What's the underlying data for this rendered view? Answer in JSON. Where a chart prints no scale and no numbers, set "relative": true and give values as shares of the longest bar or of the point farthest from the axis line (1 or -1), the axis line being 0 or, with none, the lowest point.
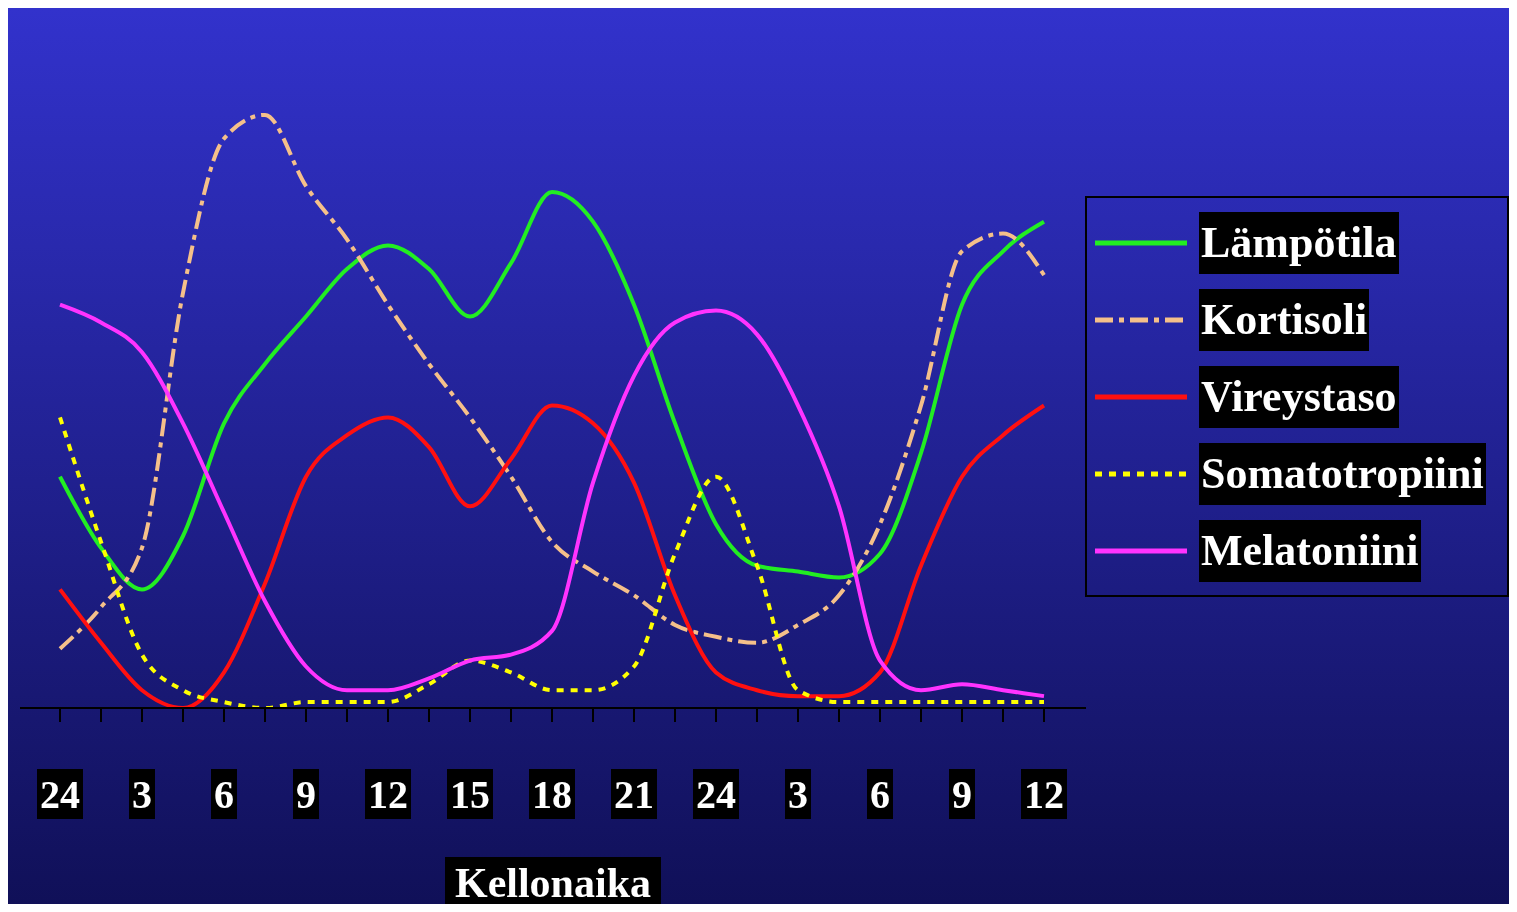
{
  "chart_data": {
    "type": "line",
    "relative": true,
    "xlabel": "Kellonaika",
    "categories": [
      "24",
      null,
      "3",
      null,
      "6",
      null,
      "9",
      null,
      "12",
      null,
      "15",
      null,
      "18",
      null,
      "21",
      null,
      "24",
      null,
      "3",
      null,
      "6",
      null,
      "9",
      null,
      "12"
    ],
    "legend": "right",
    "series": [
      {
        "name": "Lämpötila",
        "color": "#22ee22",
        "line_style": "solid",
        "values": [
          0.39,
          0.27,
          0.2,
          0.29,
          0.48,
          0.58,
          0.66,
          0.74,
          0.78,
          0.74,
          0.66,
          0.75,
          0.87,
          0.82,
          0.68,
          0.48,
          0.31,
          0.24,
          0.23,
          0.22,
          0.26,
          0.43,
          0.68,
          0.77,
          0.82
        ]
      },
      {
        "name": "Kortisoli",
        "color": "#f5c08a",
        "line_style": "dashdot",
        "values": [
          0.1,
          0.17,
          0.27,
          0.7,
          0.96,
          1.0,
          0.88,
          0.79,
          0.68,
          0.58,
          0.49,
          0.39,
          0.28,
          0.23,
          0.19,
          0.14,
          0.12,
          0.11,
          0.14,
          0.19,
          0.31,
          0.51,
          0.77,
          0.8,
          0.73
        ]
      },
      {
        "name": "Vireystaso",
        "color": "#ff1010",
        "line_style": "solid",
        "values": [
          0.2,
          0.11,
          0.03,
          0.0,
          0.06,
          0.21,
          0.39,
          0.46,
          0.49,
          0.44,
          0.34,
          0.42,
          0.51,
          0.48,
          0.38,
          0.19,
          0.06,
          0.03,
          0.02,
          0.02,
          0.06,
          0.24,
          0.39,
          0.46,
          0.51
        ]
      },
      {
        "name": "Somatotropiini",
        "color": "#ffff00",
        "line_style": "dotted",
        "values": [
          0.49,
          0.28,
          0.09,
          0.03,
          0.01,
          0.0,
          0.01,
          0.01,
          0.01,
          0.04,
          0.08,
          0.06,
          0.03,
          0.03,
          0.07,
          0.26,
          0.39,
          0.24,
          0.03,
          0.01,
          0.01,
          0.01,
          0.01,
          0.01,
          0.01
        ]
      },
      {
        "name": "Melatoniini",
        "color": "#ff33ff",
        "line_style": "solid",
        "values": [
          0.68,
          0.65,
          0.6,
          0.48,
          0.33,
          0.18,
          0.07,
          0.03,
          0.03,
          0.05,
          0.08,
          0.09,
          0.13,
          0.38,
          0.56,
          0.65,
          0.67,
          0.63,
          0.51,
          0.34,
          0.08,
          0.03,
          0.04,
          0.03,
          0.02
        ]
      }
    ]
  }
}
